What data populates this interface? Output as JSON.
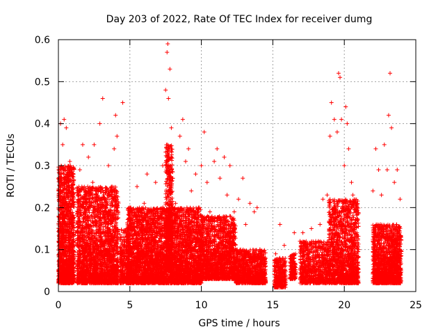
{
  "chart_data": {
    "type": "scatter",
    "title": "Day 203 of 2022, Rate Of TEC Index for receiver dumg",
    "xlabel": "GPS time / hours",
    "ylabel": "ROTI / TECUs",
    "xlim": [
      0,
      25
    ],
    "ylim": [
      0,
      0.6
    ],
    "x_ticks": [
      0,
      5,
      10,
      15,
      20,
      25
    ],
    "y_ticks": [
      0,
      0.1,
      0.2,
      0.3,
      0.4,
      0.5,
      0.6
    ],
    "grid": true,
    "marker": "+",
    "colors": {
      "series": "#ff0000",
      "grid": "#a0a0a0",
      "axis": "#000000"
    },
    "series": [
      {
        "name": "ROTI",
        "points": [
          [
            0.05,
            0.05
          ],
          [
            0.1,
            0.27
          ],
          [
            0.15,
            0.4
          ],
          [
            0.2,
            0.12
          ],
          [
            0.3,
            0.35
          ],
          [
            0.4,
            0.41
          ],
          [
            0.45,
            0.2
          ],
          [
            0.55,
            0.39
          ],
          [
            0.7,
            0.25
          ],
          [
            0.8,
            0.31
          ],
          [
            1.0,
            0.22
          ],
          [
            1.2,
            0.14
          ],
          [
            1.5,
            0.29
          ],
          [
            1.7,
            0.35
          ],
          [
            1.9,
            0.24
          ],
          [
            2.1,
            0.32
          ],
          [
            2.4,
            0.26
          ],
          [
            2.5,
            0.35
          ],
          [
            2.7,
            0.19
          ],
          [
            2.9,
            0.4
          ],
          [
            3.1,
            0.46
          ],
          [
            3.3,
            0.24
          ],
          [
            3.5,
            0.3
          ],
          [
            3.7,
            0.21
          ],
          [
            3.9,
            0.34
          ],
          [
            4.0,
            0.42
          ],
          [
            4.1,
            0.37
          ],
          [
            4.5,
            0.45
          ],
          [
            5.0,
            0.2
          ],
          [
            5.2,
            0.09
          ],
          [
            5.5,
            0.25
          ],
          [
            5.8,
            0.13
          ],
          [
            6.0,
            0.21
          ],
          [
            6.2,
            0.28
          ],
          [
            6.5,
            0.15
          ],
          [
            6.8,
            0.26
          ],
          [
            7.0,
            0.19
          ],
          [
            7.3,
            0.3
          ],
          [
            7.5,
            0.48
          ],
          [
            7.6,
            0.57
          ],
          [
            7.65,
            0.59
          ],
          [
            7.7,
            0.46
          ],
          [
            7.8,
            0.53
          ],
          [
            7.9,
            0.39
          ],
          [
            8.0,
            0.27
          ],
          [
            8.2,
            0.21
          ],
          [
            8.5,
            0.37
          ],
          [
            8.7,
            0.41
          ],
          [
            8.9,
            0.31
          ],
          [
            9.1,
            0.34
          ],
          [
            9.3,
            0.24
          ],
          [
            9.6,
            0.28
          ],
          [
            9.8,
            0.2
          ],
          [
            10.0,
            0.3
          ],
          [
            10.2,
            0.38
          ],
          [
            10.4,
            0.26
          ],
          [
            10.6,
            0.19
          ],
          [
            10.9,
            0.31
          ],
          [
            11.1,
            0.34
          ],
          [
            11.3,
            0.27
          ],
          [
            11.6,
            0.32
          ],
          [
            11.8,
            0.23
          ],
          [
            12.0,
            0.3
          ],
          [
            12.3,
            0.19
          ],
          [
            12.6,
            0.22
          ],
          [
            12.9,
            0.27
          ],
          [
            13.1,
            0.16
          ],
          [
            13.4,
            0.21
          ],
          [
            13.7,
            0.19
          ],
          [
            13.9,
            0.2
          ],
          [
            14.1,
            0.1
          ],
          [
            14.3,
            0.08
          ],
          [
            15.2,
            0.09
          ],
          [
            15.5,
            0.16
          ],
          [
            15.8,
            0.11
          ],
          [
            16.2,
            0.07
          ],
          [
            16.5,
            0.14
          ],
          [
            16.9,
            0.12
          ],
          [
            17.1,
            0.14
          ],
          [
            17.4,
            0.1
          ],
          [
            17.7,
            0.15
          ],
          [
            18.0,
            0.12
          ],
          [
            18.3,
            0.16
          ],
          [
            18.5,
            0.22
          ],
          [
            18.8,
            0.23
          ],
          [
            19.0,
            0.37
          ],
          [
            19.1,
            0.45
          ],
          [
            19.3,
            0.41
          ],
          [
            19.5,
            0.38
          ],
          [
            19.6,
            0.52
          ],
          [
            19.7,
            0.51
          ],
          [
            19.8,
            0.41
          ],
          [
            20.0,
            0.3
          ],
          [
            20.1,
            0.44
          ],
          [
            20.2,
            0.4
          ],
          [
            20.3,
            0.34
          ],
          [
            20.5,
            0.26
          ],
          [
            20.6,
            0.23
          ],
          [
            20.8,
            0.19
          ],
          [
            21.0,
            0.1
          ],
          [
            22.0,
            0.24
          ],
          [
            22.2,
            0.34
          ],
          [
            22.4,
            0.29
          ],
          [
            22.6,
            0.23
          ],
          [
            22.8,
            0.35
          ],
          [
            23.0,
            0.29
          ],
          [
            23.1,
            0.42
          ],
          [
            23.2,
            0.52
          ],
          [
            23.3,
            0.39
          ],
          [
            23.5,
            0.26
          ],
          [
            23.7,
            0.29
          ],
          [
            23.9,
            0.22
          ]
        ]
      }
    ],
    "density_bands": [
      {
        "from": 0.0,
        "to": 1.1,
        "low": 0.02,
        "high": 0.3,
        "count": 1400
      },
      {
        "from": 1.3,
        "to": 4.2,
        "low": 0.02,
        "high": 0.25,
        "count": 2200
      },
      {
        "from": 4.3,
        "to": 5.0,
        "low": 0.02,
        "high": 0.15,
        "count": 300
      },
      {
        "from": 4.8,
        "to": 10.0,
        "low": 0.02,
        "high": 0.2,
        "count": 3800
      },
      {
        "from": 7.5,
        "to": 8.0,
        "low": 0.05,
        "high": 0.35,
        "count": 500
      },
      {
        "from": 10.0,
        "to": 12.4,
        "low": 0.03,
        "high": 0.18,
        "count": 1400
      },
      {
        "from": 12.4,
        "to": 14.5,
        "low": 0.02,
        "high": 0.1,
        "count": 900
      },
      {
        "from": 15.1,
        "to": 15.9,
        "low": 0.01,
        "high": 0.08,
        "count": 300
      },
      {
        "from": 16.2,
        "to": 16.6,
        "low": 0.03,
        "high": 0.09,
        "count": 150
      },
      {
        "from": 16.9,
        "to": 18.9,
        "low": 0.02,
        "high": 0.12,
        "count": 700
      },
      {
        "from": 18.9,
        "to": 21.0,
        "low": 0.02,
        "high": 0.22,
        "count": 1300
      },
      {
        "from": 22.0,
        "to": 24.0,
        "low": 0.02,
        "high": 0.16,
        "count": 1300
      }
    ]
  }
}
